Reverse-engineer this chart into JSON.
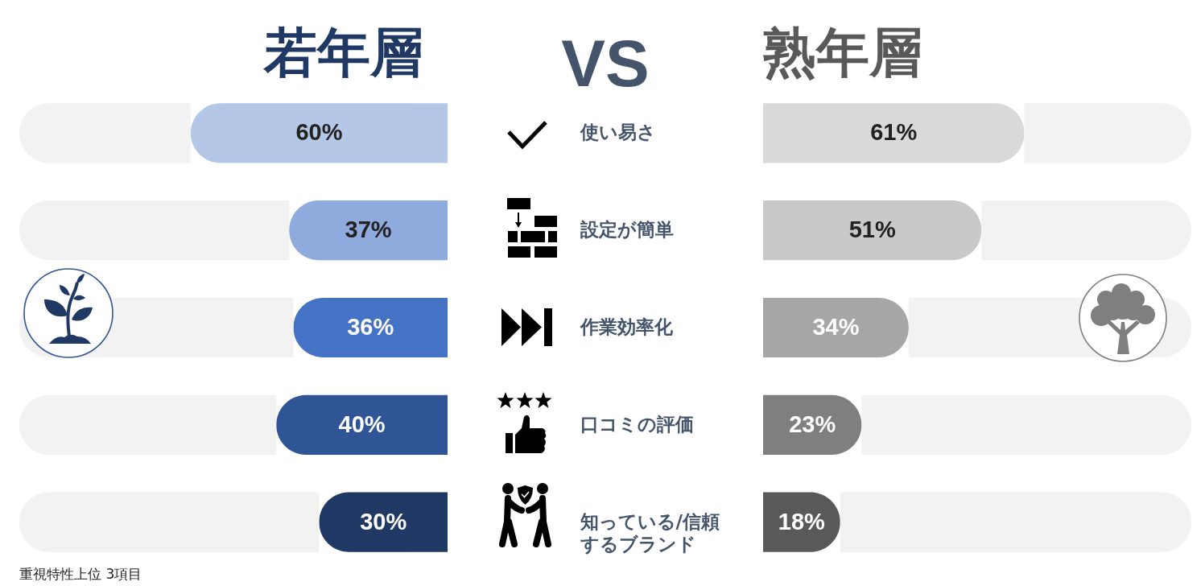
{
  "chart_data": [
    {
      "type": "bar",
      "orientation": "horizontal",
      "stacked": true,
      "title": "若年層",
      "categories": [
        "使い易さ",
        "設定が簡単",
        "作業効率化",
        "口コミの評価",
        "知っている/信頼するブランド"
      ],
      "xlim": [
        100,
        0
      ],
      "tick_labels": false,
      "series": [
        {
          "colors": [
            "#b4c7e7",
            "#8faadc",
            "#4472c4",
            "#2f5597",
            "#203864"
          ],
          "values": [
            60,
            37,
            36,
            40,
            30
          ],
          "value_labels": [
            "60%",
            "37%",
            "36%",
            "40%",
            "30%"
          ]
        },
        {
          "color": "#f2f2f2",
          "values": [
            40,
            63,
            64,
            60,
            70
          ]
        }
      ],
      "annotations": [
        "VS",
        "重視特性上位 3項目"
      ]
    },
    {
      "type": "bar",
      "orientation": "horizontal",
      "stacked": true,
      "title": "熟年層",
      "categories": [
        "使い易さ",
        "設定が簡単",
        "作業効率化",
        "口コミの評価",
        "知っている/信頼するブランド"
      ],
      "xlim": [
        0,
        100
      ],
      "series": [
        {
          "colors": [
            "#d9d9d9",
            "#c9c9c9",
            "#a6a6a6",
            "#7f7f7f",
            "#595959"
          ],
          "values": [
            61,
            51,
            34,
            23,
            18
          ],
          "value_labels": [
            "61%",
            "51%",
            "34%",
            "23%",
            "18%"
          ]
        },
        {
          "color": "#f2f2f2",
          "values": [
            39,
            49,
            66,
            77,
            82
          ]
        }
      ]
    }
  ]
}
